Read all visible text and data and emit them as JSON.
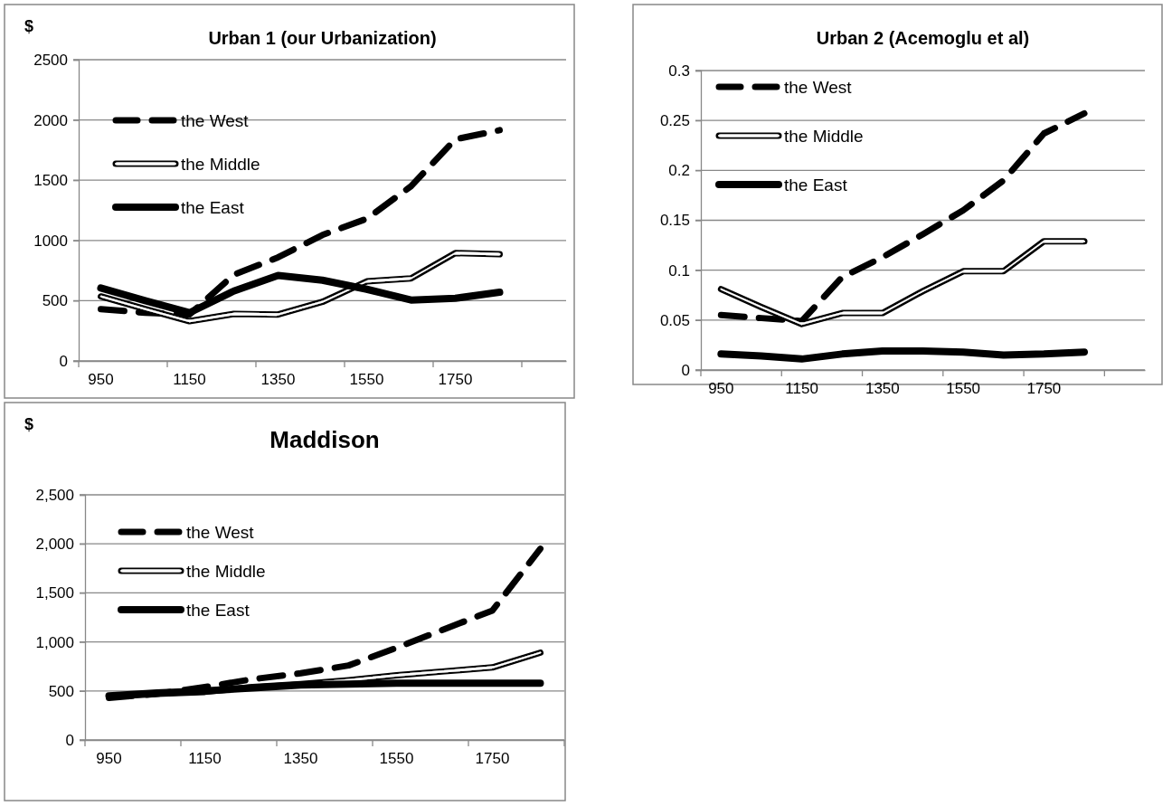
{
  "chart_data": [
    {
      "type": "line",
      "title": "Urban 1 (our Urbanization)",
      "ylabel": "$",
      "categories": [
        "950",
        null,
        "1150",
        null,
        "1350",
        null,
        "1550",
        null,
        "1750",
        null,
        null
      ],
      "ylim": [
        0,
        2500
      ],
      "yticks": [
        0,
        500,
        1000,
        1500,
        2000,
        2500
      ],
      "grid": "y",
      "legend": "top left",
      "marker": "none",
      "series": [
        {
          "name": "the West",
          "color": "#000000",
          "line_style": "dashed",
          "values": [
            430,
            400,
            385,
            715,
            860,
            1045,
            1180,
            1450,
            1840,
            1915,
            null
          ]
        },
        {
          "name": "the Middle",
          "color": "#000000",
          "line_style": "solid",
          "values": [
            535,
            430,
            330,
            390,
            385,
            490,
            660,
            685,
            895,
            885,
            null
          ]
        },
        {
          "name": "the East",
          "color": "#000000",
          "line_style": "solid",
          "values": [
            605,
            500,
            400,
            580,
            710,
            670,
            595,
            505,
            520,
            570,
            null
          ]
        }
      ]
    },
    {
      "type": "line",
      "title": "Urban 2 (Acemoglu et al)",
      "categories": [
        "950",
        null,
        "1150",
        null,
        "1350",
        null,
        "1550",
        null,
        "1750",
        null,
        null
      ],
      "ylim": [
        0,
        0.3
      ],
      "yticks": [
        0,
        0.05,
        0.1,
        0.15,
        0.2,
        0.25,
        0.3
      ],
      "grid": "y",
      "legend": "top left",
      "marker": "none",
      "series": [
        {
          "name": "the West",
          "color": "#000000",
          "line_style": "dashed",
          "values": [
            0.055,
            0.052,
            0.049,
            0.093,
            0.113,
            0.136,
            0.16,
            0.19,
            0.237,
            0.257,
            null
          ]
        },
        {
          "name": "the Middle",
          "color": "#000000",
          "line_style": "solid",
          "values": [
            0.081,
            0.063,
            0.046,
            0.057,
            0.057,
            0.079,
            0.099,
            0.099,
            0.129,
            0.129,
            null
          ]
        },
        {
          "name": "the East",
          "color": "#000000",
          "line_style": "solid",
          "values": [
            0.016,
            0.014,
            0.011,
            0.016,
            0.019,
            0.019,
            0.018,
            0.015,
            0.016,
            0.018,
            null
          ]
        }
      ]
    },
    {
      "type": "line",
      "title": "Maddison",
      "ylabel": "$",
      "categories": [
        "950",
        null,
        "1150",
        null,
        "1350",
        null,
        "1550",
        null,
        "1750",
        null
      ],
      "ylim": [
        0,
        2500
      ],
      "yticks": [
        0,
        500,
        {
          "value": 1000,
          "label": "1,000"
        },
        {
          "value": 1500,
          "label": "1,500"
        },
        {
          "value": 2000,
          "label": "2,000"
        },
        {
          "value": 2500,
          "label": "2,500"
        }
      ],
      "grid": "y",
      "legend": "top left",
      "marker": "none",
      "series": [
        {
          "name": "the West",
          "color": "#000000",
          "line_style": "dashed",
          "values": [
            430,
            470,
            540,
            620,
            680,
            760,
            940,
            1130,
            1320,
            1950
          ]
        },
        {
          "name": "the Middle",
          "color": "#000000",
          "line_style": "solid",
          "values": [
            440,
            470,
            490,
            540,
            570,
            610,
            660,
            700,
            740,
            890
          ]
        },
        {
          "name": "the East",
          "color": "#000000",
          "line_style": "solid",
          "values": [
            450,
            480,
            500,
            530,
            560,
            570,
            580,
            580,
            580,
            580
          ]
        }
      ]
    }
  ]
}
